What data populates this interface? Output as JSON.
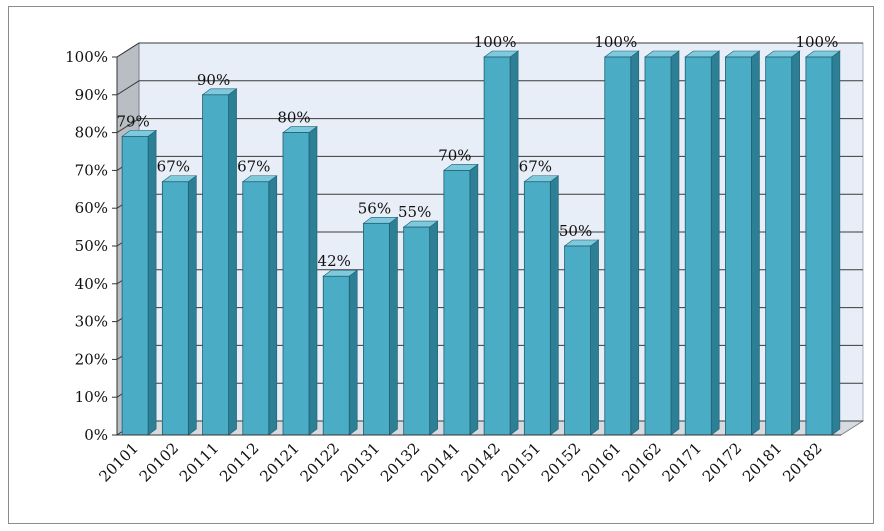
{
  "chart_data": {
    "type": "bar",
    "categories": [
      "20101",
      "20102",
      "20111",
      "20112",
      "20121",
      "20122",
      "20131",
      "20132",
      "20141",
      "20142",
      "20151",
      "20152",
      "20161",
      "20162",
      "20171",
      "20172",
      "20181",
      "20182"
    ],
    "values": [
      79,
      67,
      90,
      67,
      80,
      42,
      56,
      55,
      70,
      100,
      67,
      50,
      100,
      100,
      100,
      100,
      100,
      100
    ],
    "data_labels": [
      "79%",
      "67%",
      "90%",
      "67%",
      "80%",
      "42%",
      "56%",
      "55%",
      "70%",
      "100%",
      "67%",
      "50%",
      "100%",
      "",
      "",
      "",
      "",
      "100%"
    ],
    "y_ticks": [
      "0%",
      "10%",
      "20%",
      "30%",
      "40%",
      "50%",
      "60%",
      "70%",
      "80%",
      "90%",
      "100%"
    ],
    "ylim": [
      0,
      100
    ],
    "title": "",
    "xlabel": "",
    "ylabel": "",
    "grid": true,
    "legend": "none",
    "style": "3d-column",
    "colors": {
      "bar_front": "#4bacc6",
      "bar_side": "#2c7f95",
      "bar_top": "#7fc9dc",
      "back_wall": "#e8eef7",
      "gridline": "#3a3a3a"
    }
  }
}
